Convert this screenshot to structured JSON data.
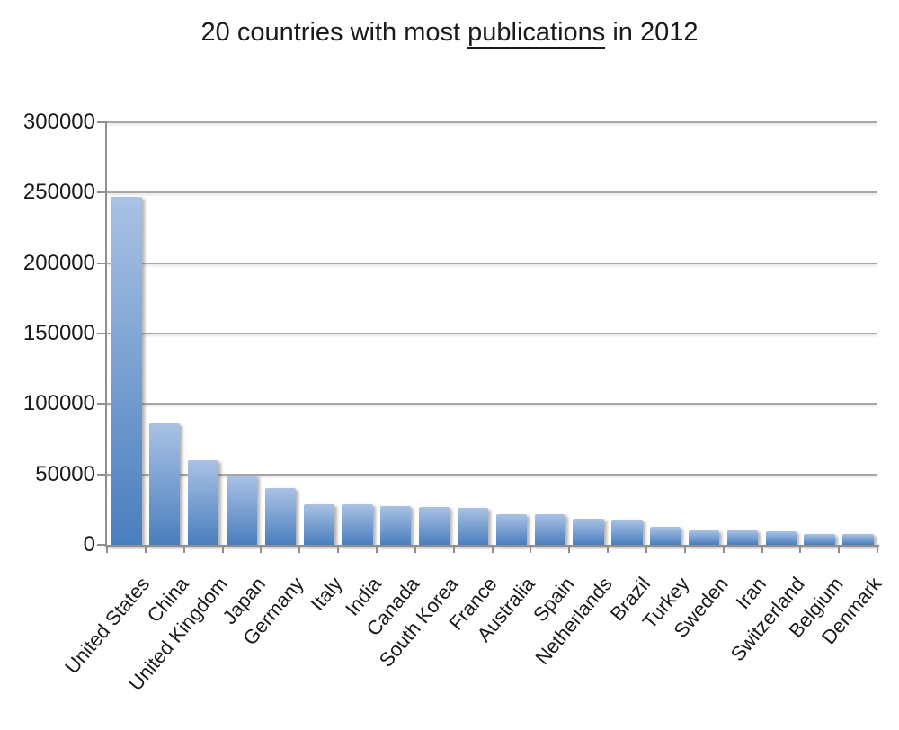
{
  "title": {
    "prefix": "20 countries with most ",
    "underlined": "publications",
    "suffix": " in 2012"
  },
  "chart_data": {
    "type": "bar",
    "title": "20 countries with most publications in 2012",
    "xlabel": "",
    "ylabel": "",
    "categories": [
      "United States",
      "China",
      "United Kingdom",
      "Japan",
      "Germany",
      "Italy",
      "India",
      "Canada",
      "South Korea",
      "France",
      "Australia",
      "Spain",
      "Netherlands",
      "Brazil",
      "Turkey",
      "Sweden",
      "Iran",
      "Switzerland",
      "Belgium",
      "Denmark"
    ],
    "values": [
      247000,
      86000,
      60000,
      49000,
      40000,
      29000,
      28500,
      27500,
      27000,
      26500,
      22000,
      21500,
      18500,
      18000,
      13000,
      10500,
      10000,
      9800,
      8000,
      7800
    ],
    "ylim": [
      0,
      300000
    ],
    "ytick_interval": 50000,
    "ytick_labels": [
      "0",
      "50000",
      "100000",
      "150000",
      "200000",
      "250000",
      "300000"
    ],
    "grid": true,
    "legend": false,
    "x_label_rotation_deg": -50
  },
  "colors": {
    "bar_gradient_top": "#A9C2E4",
    "bar_gradient_bottom": "#4A7EBE",
    "gridline": "#A6A6A6",
    "axis": "#8F8F8F",
    "text": "#1A1A1A",
    "background": "#FFFFFF"
  }
}
